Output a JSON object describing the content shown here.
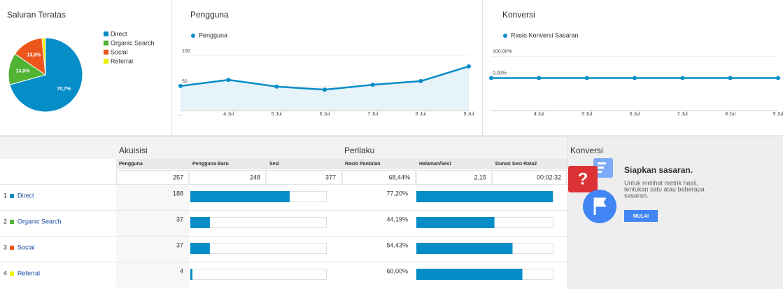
{
  "chart_data": [
    {
      "type": "pie",
      "title": "Saluran Teratas",
      "categories": [
        "Direct",
        "Organic Search",
        "Social",
        "Referral"
      ],
      "values": [
        70.7,
        13.9,
        13.9,
        1.5
      ],
      "value_labels": [
        "70,7%",
        "13,9%",
        "13,9%",
        null
      ],
      "colors": [
        "#058dc7",
        "#50b432",
        "#ed561b",
        "#edef00"
      ]
    },
    {
      "type": "line",
      "title": "Pengguna",
      "categories": [
        "...",
        "4 Jul",
        "5 Jul",
        "6 Jul",
        "7 Jul",
        "8 Jul",
        "9 Jul"
      ],
      "series": [
        {
          "name": "Pengguna",
          "color": "#058dc7",
          "values": [
            51,
            61,
            50,
            45,
            53,
            59,
            83
          ]
        }
      ],
      "ylim": [
        11,
        117
      ],
      "yticks": [
        50,
        100
      ],
      "area": true
    },
    {
      "type": "line",
      "title": "Konversi",
      "categories": [
        null,
        "4 Jul",
        "5 Jul",
        "6 Jul",
        "7 Jul",
        "8 Jul",
        "9 Jul"
      ],
      "series": [
        {
          "name": "Rasio Konversi Sasaran",
          "color": "#058dc7",
          "values": [
            0,
            0,
            0,
            0,
            0,
            0,
            0
          ]
        }
      ],
      "ylim": [
        -150,
        150
      ],
      "yticks": [
        {
          "value": 0,
          "label": "0,00%"
        },
        {
          "value": 100,
          "label": "100,00%"
        }
      ],
      "area": false
    }
  ],
  "table": {
    "groups": [
      "Akuisisi",
      "Perilaku",
      "Konversi"
    ],
    "columns": [
      "Pengguna",
      "Pengguna Baru",
      "Sesi",
      "Rasio Pantulan",
      "Halaman/Sesi",
      "Durasi Sesi Rata2"
    ],
    "totals": [
      257,
      248,
      377,
      "68,44%",
      "2,15",
      "00:02:32"
    ],
    "rows": [
      {
        "rank": 1,
        "channel": "Direct",
        "users": 188,
        "bounce_rate": {
          "value": 77.2,
          "label": "77,20%"
        }
      },
      {
        "rank": 2,
        "channel": "Organic Search",
        "users": 37,
        "bounce_rate": {
          "value": 44.19,
          "label": "44,19%"
        }
      },
      {
        "rank": 3,
        "channel": "Social",
        "users": 37,
        "bounce_rate": {
          "value": 54.43,
          "label": "54,43%"
        }
      },
      {
        "rank": 4,
        "channel": "Referral",
        "users": 4,
        "bounce_rate": {
          "value": 60.0,
          "label": "60,00%"
        }
      }
    ]
  },
  "goal_panel": {
    "heading": "Siapkan sasaran.",
    "lines": [
      "Untuk melihat metrik hasil,",
      "tentukan satu atau beberapa",
      "sasaran."
    ],
    "button": "MULAI"
  }
}
